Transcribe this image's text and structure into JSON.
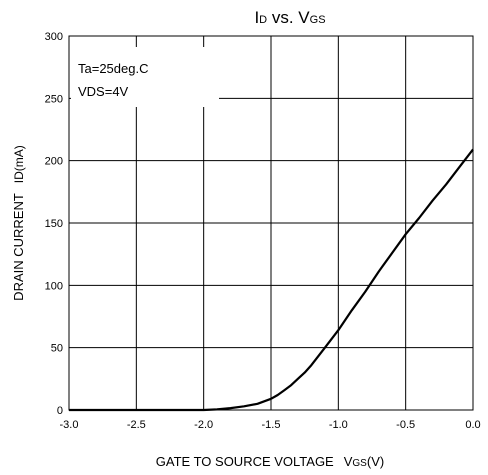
{
  "chart_data": {
    "type": "line",
    "title_main": "I",
    "title_main_sub": "D",
    "title_mid": " vs. V",
    "title_mid_sub": "GS",
    "xlabel_main": "GATE TO SOURCE VOLTAGE",
    "xlabel_unit_prefix": "V",
    "xlabel_unit_sub": "GS",
    "xlabel_unit_suffix": "(V)",
    "ylabel_main": "DRAIN CURRENT",
    "ylabel_unit": "ID(mA)",
    "xlim": [
      -3.0,
      0.0
    ],
    "ylim": [
      0,
      300
    ],
    "xticks": [
      "-3.0",
      "-2.5",
      "-2.0",
      "-1.5",
      "-1.0",
      "-0.5",
      "0.0"
    ],
    "yticks": [
      "0",
      "50",
      "100",
      "150",
      "200",
      "250",
      "300"
    ],
    "grid": true,
    "annotations": [
      "Ta=25deg.C",
      "VDS=4V"
    ],
    "series": [
      {
        "x": [
          -3.0,
          -2.0,
          -1.9,
          -1.8,
          -1.7,
          -1.6,
          -1.5,
          -1.45,
          -1.4,
          -1.35,
          -1.3,
          -1.25,
          -1.2,
          -1.1,
          -1.0,
          -0.9,
          -0.8,
          -0.7,
          -0.6,
          -0.5,
          -0.4,
          -0.3,
          -0.2,
          -0.1,
          0.0
        ],
        "y": [
          0,
          0,
          0.5,
          1.5,
          3,
          5,
          9,
          12,
          16,
          20,
          25,
          30,
          36,
          50,
          64,
          80,
          95,
          111,
          126,
          141,
          154,
          168,
          181,
          195,
          209
        ]
      }
    ]
  }
}
